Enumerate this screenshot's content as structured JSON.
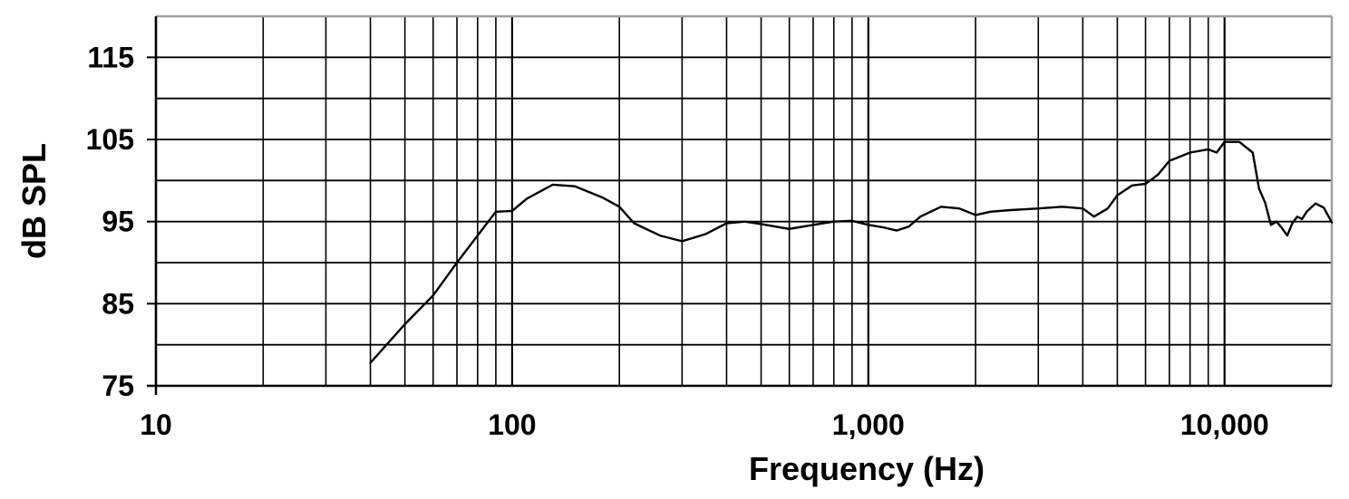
{
  "chart_data": {
    "type": "line",
    "xlabel": "Frequency (Hz)",
    "ylabel": "dB SPL",
    "x_scale": "log",
    "xlim": [
      10,
      20000
    ],
    "ylim": [
      75,
      120
    ],
    "grid": true,
    "y_ticks": [
      75,
      85,
      95,
      105,
      115
    ],
    "y_tick_labels": [
      "75",
      "85",
      "95",
      "105",
      "115"
    ],
    "x_ticks": [
      10,
      100,
      1000,
      10000
    ],
    "x_tick_labels": [
      "10",
      "100",
      "1,000",
      "10,000"
    ],
    "series": [
      {
        "color": "#000000",
        "x": [
          40,
          50,
          60,
          70,
          80,
          90,
          100,
          110,
          130,
          150,
          180,
          200,
          220,
          260,
          300,
          350,
          400,
          450,
          500,
          600,
          700,
          800,
          900,
          1000,
          1100,
          1200,
          1300,
          1400,
          1600,
          1800,
          2000,
          2200,
          2500,
          3000,
          3500,
          4000,
          4300,
          4700,
          5000,
          5500,
          6000,
          6500,
          7000,
          8000,
          9000,
          9500,
          10000,
          11000,
          12000,
          12500,
          13000,
          13500,
          14000,
          14500,
          15000,
          15500,
          16000,
          16500,
          17000,
          18000,
          19000,
          20000
        ],
        "y": [
          77.8,
          82.5,
          86,
          90,
          93.3,
          96.2,
          96.3,
          97.8,
          99.5,
          99.3,
          97.9,
          96.8,
          94.8,
          93.3,
          92.6,
          93.5,
          94.8,
          95.0,
          94.7,
          94.1,
          94.6,
          95.0,
          95.1,
          94.6,
          94.3,
          93.9,
          94.4,
          95.6,
          96.8,
          96.6,
          95.8,
          96.2,
          96.4,
          96.6,
          96.8,
          96.6,
          95.6,
          96.6,
          98.2,
          99.4,
          99.6,
          100.7,
          102.4,
          103.4,
          103.8,
          103.4,
          104.7,
          104.7,
          103.4,
          99.0,
          97.3,
          94.6,
          95.0,
          94.2,
          93.3,
          94.8,
          95.6,
          95.3,
          96.2,
          97.2,
          96.7,
          94.9
        ]
      }
    ]
  }
}
